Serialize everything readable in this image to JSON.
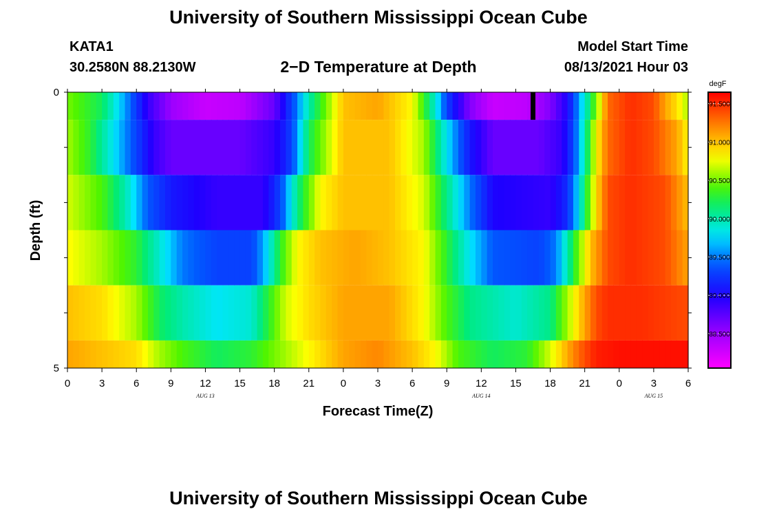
{
  "header": {
    "title": "University of Southern Mississippi Ocean Cube",
    "station": "KATA1",
    "location": "30.2580N  88.2130W",
    "plot_title": "2−D Temperature at Depth",
    "model_start_label": "Model Start Time",
    "model_start_value": "08/13/2021 Hour 03"
  },
  "footer": {
    "title": "University of Southern Mississippi Ocean Cube"
  },
  "chart_data": {
    "type": "heatmap",
    "xlabel": "Forecast Time(Z)",
    "ylabel": "Depth (ft)",
    "x_range_hours": [
      0,
      54
    ],
    "x_tick_labels": [
      "0",
      "3",
      "6",
      "9",
      "12",
      "15",
      "18",
      "21",
      "0",
      "3",
      "6",
      "9",
      "12",
      "15",
      "18",
      "21",
      "0",
      "3",
      "6"
    ],
    "date_labels": [
      {
        "label": "AUG 13",
        "hour": 12
      },
      {
        "label": "AUG 14",
        "hour": 36
      },
      {
        "label": "AUG 15",
        "hour": 51
      }
    ],
    "y_range": [
      0,
      5
    ],
    "y_tick_labels": [
      "0",
      "5"
    ],
    "colorbar": {
      "unit": "degF",
      "range": [
        88.05,
        91.65
      ],
      "ticks": [
        "88.500",
        "89.000",
        "89.500",
        "90.000",
        "90.500",
        "91.000",
        "91.500"
      ]
    },
    "marker_hour": 40.5,
    "layers": [
      {
        "depth_range": [
          0,
          0.5
        ],
        "keyframes": [
          [
            0,
            90.5
          ],
          [
            3,
            90.2
          ],
          [
            5,
            89.6
          ],
          [
            7,
            88.9
          ],
          [
            9,
            88.5
          ],
          [
            12,
            88.3
          ],
          [
            15,
            88.35
          ],
          [
            18,
            88.7
          ],
          [
            19.5,
            89.3
          ],
          [
            21,
            90.0
          ],
          [
            24,
            91.0
          ],
          [
            27,
            91.1
          ],
          [
            30,
            90.8
          ],
          [
            32,
            89.9
          ],
          [
            33,
            89.3
          ],
          [
            35,
            88.6
          ],
          [
            37,
            88.3
          ],
          [
            40,
            88.35
          ],
          [
            42,
            88.6
          ],
          [
            43.5,
            89.0
          ],
          [
            44.5,
            89.6
          ],
          [
            46,
            90.5
          ],
          [
            47,
            91.3
          ],
          [
            49,
            91.5
          ],
          [
            51,
            91.4
          ],
          [
            52,
            91.1
          ],
          [
            53,
            90.9
          ],
          [
            54,
            90.6
          ]
        ]
      },
      {
        "depth_range": [
          0.5,
          1.5
        ],
        "keyframes": [
          [
            0,
            90.6
          ],
          [
            2,
            90.3
          ],
          [
            4,
            89.8
          ],
          [
            6,
            89.3
          ],
          [
            7.5,
            88.9
          ],
          [
            9,
            88.7
          ],
          [
            15,
            88.7
          ],
          [
            18,
            88.9
          ],
          [
            19.5,
            89.3
          ],
          [
            21,
            90.2
          ],
          [
            24,
            91.0
          ],
          [
            28,
            91.0
          ],
          [
            31,
            90.6
          ],
          [
            33,
            89.8
          ],
          [
            35,
            89.1
          ],
          [
            37,
            88.7
          ],
          [
            41,
            88.7
          ],
          [
            43,
            88.9
          ],
          [
            44,
            89.3
          ],
          [
            45,
            90.0
          ],
          [
            46,
            90.8
          ],
          [
            47,
            91.3
          ],
          [
            49,
            91.5
          ],
          [
            51,
            91.4
          ],
          [
            53,
            91.1
          ],
          [
            54,
            90.8
          ]
        ]
      },
      {
        "depth_range": [
          1.5,
          2.5
        ],
        "keyframes": [
          [
            0,
            90.7
          ],
          [
            3,
            90.4
          ],
          [
            5,
            90.0
          ],
          [
            7,
            89.4
          ],
          [
            9,
            89.1
          ],
          [
            13,
            88.9
          ],
          [
            17,
            88.9
          ],
          [
            18.5,
            89.3
          ],
          [
            20,
            90.1
          ],
          [
            22,
            90.8
          ],
          [
            24,
            91.0
          ],
          [
            28,
            91.0
          ],
          [
            31,
            90.7
          ],
          [
            33,
            90.1
          ],
          [
            35,
            89.5
          ],
          [
            37,
            89.0
          ],
          [
            42,
            88.9
          ],
          [
            43.5,
            89.2
          ],
          [
            44.5,
            89.8
          ],
          [
            46,
            90.9
          ],
          [
            47,
            91.4
          ],
          [
            49,
            91.5
          ],
          [
            52,
            91.4
          ],
          [
            54,
            91.0
          ]
        ]
      },
      {
        "depth_range": [
          2.5,
          3.5
        ],
        "keyframes": [
          [
            0,
            90.8
          ],
          [
            3,
            90.6
          ],
          [
            6,
            90.3
          ],
          [
            8,
            89.9
          ],
          [
            10,
            89.5
          ],
          [
            13,
            89.3
          ],
          [
            16,
            89.3
          ],
          [
            17,
            89.6
          ],
          [
            18.5,
            90.3
          ],
          [
            20,
            90.8
          ],
          [
            22,
            91.0
          ],
          [
            25,
            91.1
          ],
          [
            28,
            91.0
          ],
          [
            31,
            90.8
          ],
          [
            33,
            90.3
          ],
          [
            35,
            89.8
          ],
          [
            37,
            89.4
          ],
          [
            41,
            89.3
          ],
          [
            42.5,
            89.5
          ],
          [
            43.5,
            90.0
          ],
          [
            44.5,
            90.5
          ],
          [
            45.5,
            91.0
          ],
          [
            47,
            91.4
          ],
          [
            49,
            91.5
          ],
          [
            52,
            91.4
          ],
          [
            54,
            91.1
          ]
        ]
      },
      {
        "depth_range": [
          3.5,
          4.5
        ],
        "keyframes": [
          [
            0,
            91.0
          ],
          [
            3,
            90.9
          ],
          [
            6,
            90.6
          ],
          [
            8,
            90.2
          ],
          [
            10,
            90.0
          ],
          [
            13,
            89.8
          ],
          [
            16,
            89.9
          ],
          [
            17.5,
            90.3
          ],
          [
            19,
            90.7
          ],
          [
            21,
            90.9
          ],
          [
            24,
            91.1
          ],
          [
            28,
            91.1
          ],
          [
            31,
            90.8
          ],
          [
            33,
            90.4
          ],
          [
            35,
            90.1
          ],
          [
            39,
            89.9
          ],
          [
            42,
            90.1
          ],
          [
            43.5,
            90.6
          ],
          [
            45,
            91.1
          ],
          [
            46,
            91.4
          ],
          [
            47,
            91.5
          ],
          [
            50,
            91.5
          ],
          [
            54,
            91.4
          ]
        ]
      },
      {
        "depth_range": [
          4.5,
          5.0
        ],
        "keyframes": [
          [
            0,
            91.1
          ],
          [
            3,
            91.0
          ],
          [
            6,
            90.9
          ],
          [
            8,
            90.6
          ],
          [
            10,
            90.4
          ],
          [
            13,
            90.2
          ],
          [
            16,
            90.3
          ],
          [
            18,
            90.5
          ],
          [
            21,
            90.8
          ],
          [
            24,
            91.1
          ],
          [
            27,
            91.2
          ],
          [
            30,
            91.0
          ],
          [
            32,
            90.8
          ],
          [
            34,
            90.4
          ],
          [
            37,
            90.2
          ],
          [
            40,
            90.3
          ],
          [
            42,
            90.7
          ],
          [
            44,
            91.2
          ],
          [
            45,
            91.4
          ],
          [
            46,
            91.55
          ],
          [
            48,
            91.6
          ],
          [
            54,
            91.6
          ]
        ]
      }
    ]
  }
}
